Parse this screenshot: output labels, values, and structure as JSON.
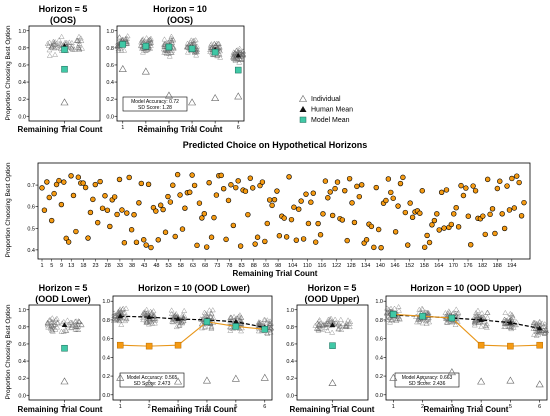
{
  "colors": {
    "model": "#40c8a6",
    "model_stroke": "#1a6b58",
    "individual": "#666666",
    "human": "#111111",
    "orange_fill": "#f59a12",
    "orange_line": "#e8961a",
    "accent": "#f59a12"
  },
  "legend": {
    "individual": "Individual",
    "human": "Human Mean",
    "model": "Model Mean"
  },
  "chart_data": [
    {
      "id": "p1",
      "type": "scatter",
      "title": "Horizon = 5",
      "subtitle": "(OOS)",
      "xlabel": "Remaining Trial Count",
      "ylabel": "Proportion Choosing Best Option",
      "x_ticks": [
        "1"
      ],
      "ylim": [
        0,
        1
      ],
      "grid": false,
      "series": [
        {
          "name": "Human Mean",
          "x": [
            1
          ],
          "y": [
            0.82
          ]
        },
        {
          "name": "Model Mean",
          "x": [
            1,
            1
          ],
          "y": [
            0.78,
            0.55
          ]
        }
      ],
      "outliers": [
        0.16
      ]
    },
    {
      "id": "p2",
      "type": "scatter",
      "title": "Horizon = 10",
      "subtitle": "(OOS)",
      "xlabel": "Remaining Trial Count",
      "x_ticks": [
        "1",
        "2",
        "3",
        "4",
        "5",
        "6"
      ],
      "ylim": [
        0,
        1
      ],
      "grid": false,
      "series": [
        {
          "name": "Human Mean",
          "x": [
            1,
            2,
            3,
            4,
            5,
            6
          ],
          "y": [
            0.85,
            0.83,
            0.82,
            0.8,
            0.78,
            0.71
          ]
        },
        {
          "name": "Model Mean",
          "x": [
            1,
            2,
            3,
            4,
            5,
            6
          ],
          "y": [
            0.84,
            0.82,
            0.81,
            0.79,
            0.75,
            0.54
          ]
        }
      ],
      "outliers": [
        0.55,
        0.52,
        0.24,
        0.16,
        0.21,
        0.23
      ],
      "annotation": [
        "Model Accuracy: 0.72",
        "SD Score: 1.28"
      ]
    },
    {
      "id": "p3",
      "type": "scatter",
      "title": "Predicted Choice on Hypothetical Horizons",
      "xlabel": "Remaining Trial Count",
      "ylabel": "Proportion Choosing Best Option",
      "x_ticks": [
        "1",
        "5",
        "9",
        "13",
        "18",
        "23",
        "28",
        "33",
        "38",
        "43",
        "48",
        "53",
        "58",
        "63",
        "68",
        "73",
        "78",
        "83",
        "88",
        "93",
        "98",
        "104",
        "110",
        "116",
        "122",
        "128",
        "134",
        "140",
        "146",
        "152",
        "158",
        "164",
        "170",
        "176",
        "182",
        "188",
        "194"
      ],
      "xlim": [
        1,
        199
      ],
      "ylim": [
        0.38,
        0.78
      ],
      "grid": false
    },
    {
      "id": "p4",
      "type": "scatter",
      "title": "Horizon = 5",
      "subtitle": "(OOD Lower)",
      "xlabel": "Remaining Trial Count",
      "ylabel": "Proportion Choosing Best Option",
      "x_ticks": [
        "1"
      ],
      "ylim": [
        0,
        1
      ],
      "grid": false,
      "series": [
        {
          "name": "Human Mean",
          "x": [
            1
          ],
          "y": [
            0.82
          ]
        },
        {
          "name": "Model Mean",
          "x": [
            1
          ],
          "y": [
            0.55
          ]
        }
      ],
      "outliers": [
        0.16
      ]
    },
    {
      "id": "p5",
      "type": "line",
      "title": "Horizon = 10 (OOD Lower)",
      "xlabel": "Remaining Trial Count",
      "x_ticks": [
        "1",
        "2",
        "3",
        "4",
        "5",
        "6"
      ],
      "ylim": [
        0,
        1
      ],
      "grid": false,
      "series": [
        {
          "name": "Human Mean",
          "x": [
            1,
            2,
            3,
            4,
            5,
            6
          ],
          "y": [
            0.84,
            0.83,
            0.81,
            0.8,
            0.78,
            0.72
          ]
        },
        {
          "name": "Model Mean",
          "x": [
            1,
            2,
            3,
            4,
            5,
            6
          ],
          "y": [
            0.53,
            0.52,
            0.53,
            0.78,
            0.73,
            0.7
          ]
        }
      ],
      "outliers": [
        0.18,
        0.12,
        0.14,
        0.15,
        0.17,
        0.18
      ],
      "annotation": [
        "Model Accuracy: 0.565",
        "SD Score: 2.473"
      ]
    },
    {
      "id": "p6",
      "type": "scatter",
      "title": "Horizon = 5",
      "subtitle": "(OOD Upper)",
      "xlabel": "Remaining Trial Count",
      "x_ticks": [
        "1"
      ],
      "ylim": [
        0,
        1
      ],
      "grid": false,
      "series": [
        {
          "name": "Human Mean",
          "x": [
            1
          ],
          "y": [
            0.82
          ]
        },
        {
          "name": "Model Mean",
          "x": [
            1
          ],
          "y": [
            0.58
          ]
        }
      ],
      "outliers": [
        0.14
      ]
    },
    {
      "id": "p7",
      "type": "line",
      "title": "Horizon = 10 (OOD Upper)",
      "xlabel": "Remaining Trial Count",
      "x_ticks": [
        "1",
        "2",
        "3",
        "4",
        "5",
        "6"
      ],
      "ylim": [
        0,
        1
      ],
      "grid": false,
      "series": [
        {
          "name": "Human Mean",
          "x": [
            1,
            2,
            3,
            4,
            5,
            6
          ],
          "y": [
            0.85,
            0.84,
            0.82,
            0.8,
            0.77,
            0.71
          ]
        },
        {
          "name": "Model Mean",
          "x": [
            1,
            2,
            3,
            4,
            5,
            6
          ],
          "y": [
            0.86,
            0.84,
            0.82,
            0.53,
            0.52,
            0.53
          ]
        }
      ],
      "outliers": [
        0.18,
        0.16,
        0.24,
        0.14,
        0.15,
        0.11
      ],
      "annotation": [
        "Model Accuracy: 0.663",
        "SD Score: 2.436"
      ]
    }
  ]
}
